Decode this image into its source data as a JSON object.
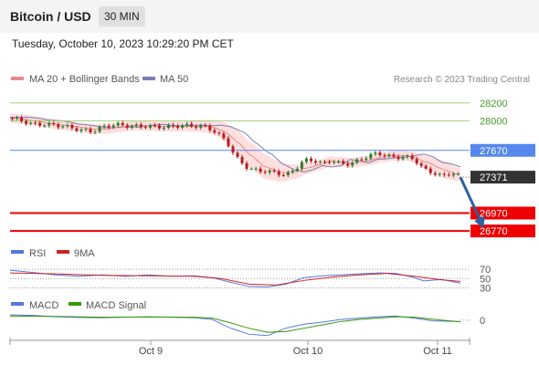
{
  "header": {
    "title": "Bitcoin / USD",
    "timeframe": "30 MIN"
  },
  "datetime": "Tuesday, October 10, 2023 10:29:20 PM CET",
  "legend": {
    "ma": "MA 20 + Bollinger Bands",
    "ma50": "MA 50",
    "credit": "Research © 2023 Trading Central"
  },
  "colors": {
    "resistance": "#9dd37a",
    "pivot": "#5588ee",
    "support": "#ee0000",
    "current": "#333333",
    "arrow": "#2f5f9e",
    "bands": "#ffdede",
    "ma20": "#e88a8a",
    "ma50": "#7a7fb5",
    "rsi": "#5577dd",
    "rsi9ma": "#cc2222",
    "macd": "#5577dd",
    "macd_signal": "#339900",
    "candle_up": "#2e7d32",
    "candle_down": "#b71c1c"
  },
  "chart_data": [
    {
      "type": "line",
      "title": "Bitcoin / USD",
      "series_names": [
        "MA 20 + Bollinger Bands",
        "MA 50"
      ],
      "x_ticks": [
        "Oct 9",
        "Oct 10",
        "Oct 11"
      ],
      "ylim": [
        26700,
        28330
      ],
      "levels": [
        {
          "value": 28200,
          "label": "28200",
          "kind": "resistance"
        },
        {
          "value": 28000,
          "label": "28000",
          "kind": "resistance"
        },
        {
          "value": 27670,
          "label": "27670",
          "kind": "pivot"
        },
        {
          "value": 27371,
          "label": "27371",
          "kind": "current"
        },
        {
          "value": 26970,
          "label": "26970",
          "kind": "support"
        },
        {
          "value": 26770,
          "label": "26770",
          "kind": "support"
        }
      ],
      "price_path": [
        [
          0,
          28030
        ],
        [
          2,
          28010
        ],
        [
          5,
          27960
        ],
        [
          8,
          27960
        ],
        [
          12,
          27940
        ],
        [
          15,
          27900
        ],
        [
          18,
          27880
        ],
        [
          20,
          27930
        ],
        [
          23,
          27960
        ],
        [
          26,
          27940
        ],
        [
          30,
          27940
        ],
        [
          33,
          27930
        ],
        [
          36,
          27940
        ],
        [
          38,
          27950
        ],
        [
          40,
          27940
        ],
        [
          42,
          27940
        ],
        [
          44,
          27900
        ],
        [
          47,
          27780
        ],
        [
          49,
          27600
        ],
        [
          52,
          27460
        ],
        [
          55,
          27440
        ],
        [
          58,
          27420
        ],
        [
          60,
          27390
        ],
        [
          62,
          27460
        ],
        [
          64,
          27560
        ],
        [
          66,
          27560
        ],
        [
          68,
          27520
        ],
        [
          70,
          27560
        ],
        [
          72,
          27520
        ],
        [
          74,
          27520
        ],
        [
          76,
          27560
        ],
        [
          78,
          27610
        ],
        [
          80,
          27640
        ],
        [
          82,
          27610
        ],
        [
          84,
          27590
        ],
        [
          86,
          27600
        ],
        [
          88,
          27570
        ],
        [
          90,
          27460
        ],
        [
          92,
          27420
        ],
        [
          94,
          27380
        ],
        [
          96,
          27420
        ],
        [
          98,
          27380
        ]
      ],
      "forecast_path": [
        [
          98,
          27371
        ],
        [
          103,
          26800
        ]
      ]
    },
    {
      "type": "line",
      "title": "RSI",
      "series_names": [
        "RSI",
        "9MA"
      ],
      "y_ticks": [
        70,
        50,
        30
      ],
      "ylim": [
        25,
        80
      ],
      "rsi": [
        [
          0,
          68
        ],
        [
          5,
          63
        ],
        [
          10,
          58
        ],
        [
          15,
          55
        ],
        [
          20,
          58
        ],
        [
          25,
          55
        ],
        [
          30,
          58
        ],
        [
          35,
          55
        ],
        [
          40,
          56
        ],
        [
          44,
          52
        ],
        [
          48,
          42
        ],
        [
          52,
          33
        ],
        [
          56,
          32
        ],
        [
          60,
          38
        ],
        [
          64,
          52
        ],
        [
          68,
          56
        ],
        [
          72,
          58
        ],
        [
          76,
          60
        ],
        [
          80,
          62
        ],
        [
          84,
          61
        ],
        [
          88,
          52
        ],
        [
          90,
          45
        ],
        [
          94,
          48
        ],
        [
          98,
          40
        ]
      ],
      "ma9": [
        [
          0,
          62
        ],
        [
          10,
          60
        ],
        [
          20,
          57
        ],
        [
          30,
          56
        ],
        [
          40,
          55
        ],
        [
          46,
          50
        ],
        [
          52,
          38
        ],
        [
          58,
          36
        ],
        [
          64,
          46
        ],
        [
          70,
          53
        ],
        [
          76,
          58
        ],
        [
          82,
          61
        ],
        [
          88,
          55
        ],
        [
          94,
          47
        ],
        [
          98,
          44
        ]
      ]
    },
    {
      "type": "line",
      "title": "MACD",
      "series_names": [
        "MACD",
        "MACD Signal"
      ],
      "y_ticks": [
        0
      ],
      "ylim": [
        -130,
        60
      ],
      "macd": [
        [
          0,
          40
        ],
        [
          5,
          35
        ],
        [
          10,
          25
        ],
        [
          15,
          20
        ],
        [
          20,
          18
        ],
        [
          25,
          22
        ],
        [
          30,
          25
        ],
        [
          35,
          22
        ],
        [
          40,
          18
        ],
        [
          44,
          5
        ],
        [
          48,
          -60
        ],
        [
          52,
          -105
        ],
        [
          56,
          -115
        ],
        [
          60,
          -60
        ],
        [
          64,
          -30
        ],
        [
          68,
          -15
        ],
        [
          72,
          5
        ],
        [
          76,
          15
        ],
        [
          80,
          25
        ],
        [
          84,
          30
        ],
        [
          88,
          15
        ],
        [
          92,
          -5
        ],
        [
          98,
          -10
        ]
      ],
      "signal": [
        [
          0,
          30
        ],
        [
          10,
          28
        ],
        [
          20,
          22
        ],
        [
          30,
          23
        ],
        [
          40,
          22
        ],
        [
          44,
          15
        ],
        [
          48,
          -20
        ],
        [
          52,
          -60
        ],
        [
          56,
          -90
        ],
        [
          60,
          -85
        ],
        [
          64,
          -60
        ],
        [
          68,
          -35
        ],
        [
          72,
          -10
        ],
        [
          76,
          5
        ],
        [
          80,
          15
        ],
        [
          84,
          25
        ],
        [
          88,
          22
        ],
        [
          94,
          0
        ],
        [
          98,
          -12
        ]
      ]
    }
  ]
}
